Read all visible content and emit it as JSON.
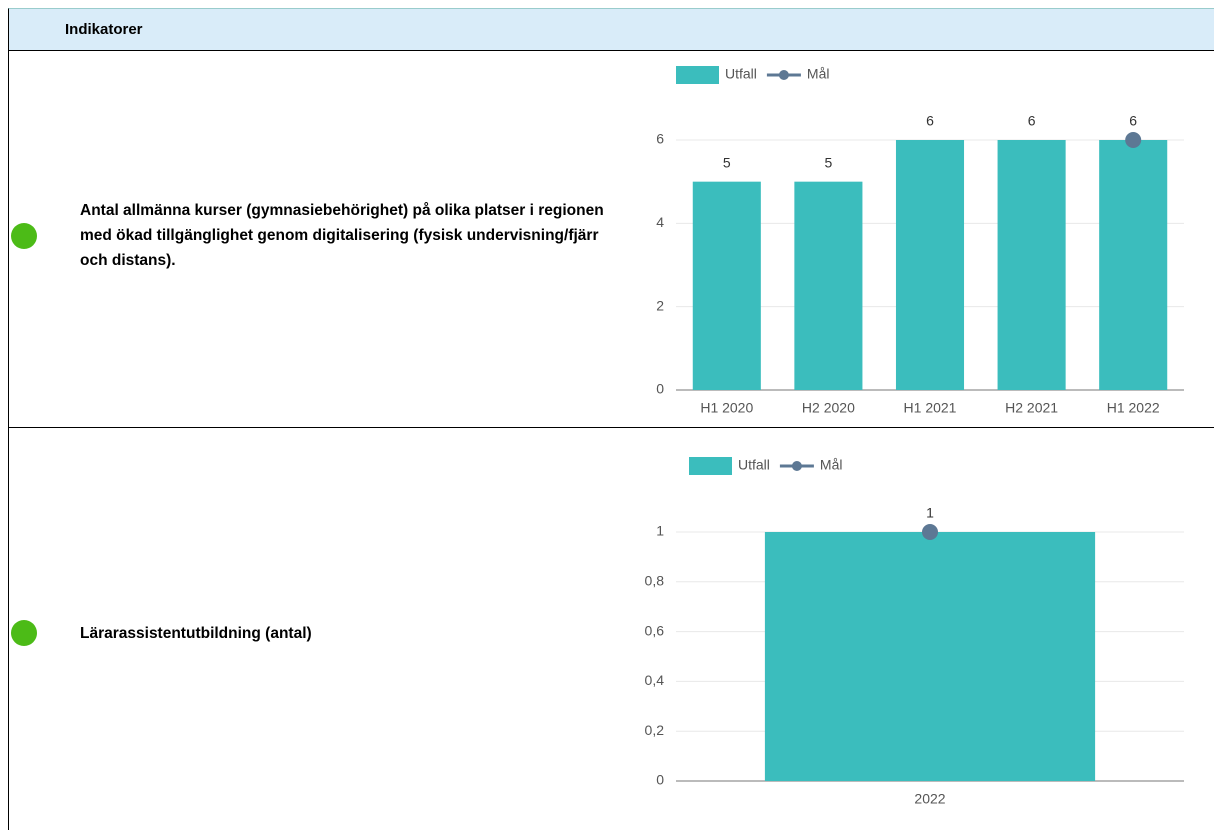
{
  "header": {
    "title": "Indikatorer"
  },
  "rows": [
    {
      "label": "Antal allmänna kurser (gymnasiebehörighet) på olika platser i regionen med ökad tillgänglighet genom digitalisering (fysisk undervisning/fjärr och distans)."
    },
    {
      "label": "Lärarassistentutbildning (antal)"
    }
  ],
  "chart_data": [
    {
      "type": "bar",
      "categories": [
        "H1 2020",
        "H2 2020",
        "H1 2021",
        "H2 2021",
        "H1 2022"
      ],
      "series": [
        {
          "name": "Utfall",
          "type": "bar",
          "color": "#3bbdbd",
          "values": [
            5,
            5,
            6,
            6,
            6
          ]
        },
        {
          "name": "Mål",
          "type": "line",
          "color": "#5d7894",
          "values": [
            null,
            null,
            null,
            null,
            6
          ]
        }
      ],
      "ylim": [
        0,
        6.5
      ],
      "yticks": [
        0,
        2,
        4,
        6
      ],
      "grid": true,
      "legend": "top"
    },
    {
      "type": "bar",
      "categories": [
        "2022"
      ],
      "series": [
        {
          "name": "Utfall",
          "type": "bar",
          "color": "#3bbdbd",
          "values": [
            1
          ]
        },
        {
          "name": "Mål",
          "type": "line",
          "color": "#5d7894",
          "values": [
            1
          ]
        }
      ],
      "ylim": [
        0,
        1.1
      ],
      "yticks": [
        0,
        {
          "value": 0.2,
          "label": "0,2"
        },
        {
          "value": 0.4,
          "label": "0,4"
        },
        {
          "value": 0.6,
          "label": "0,6"
        },
        {
          "value": 0.8,
          "label": "0,8"
        },
        1
      ],
      "grid": true,
      "legend": "top"
    }
  ]
}
